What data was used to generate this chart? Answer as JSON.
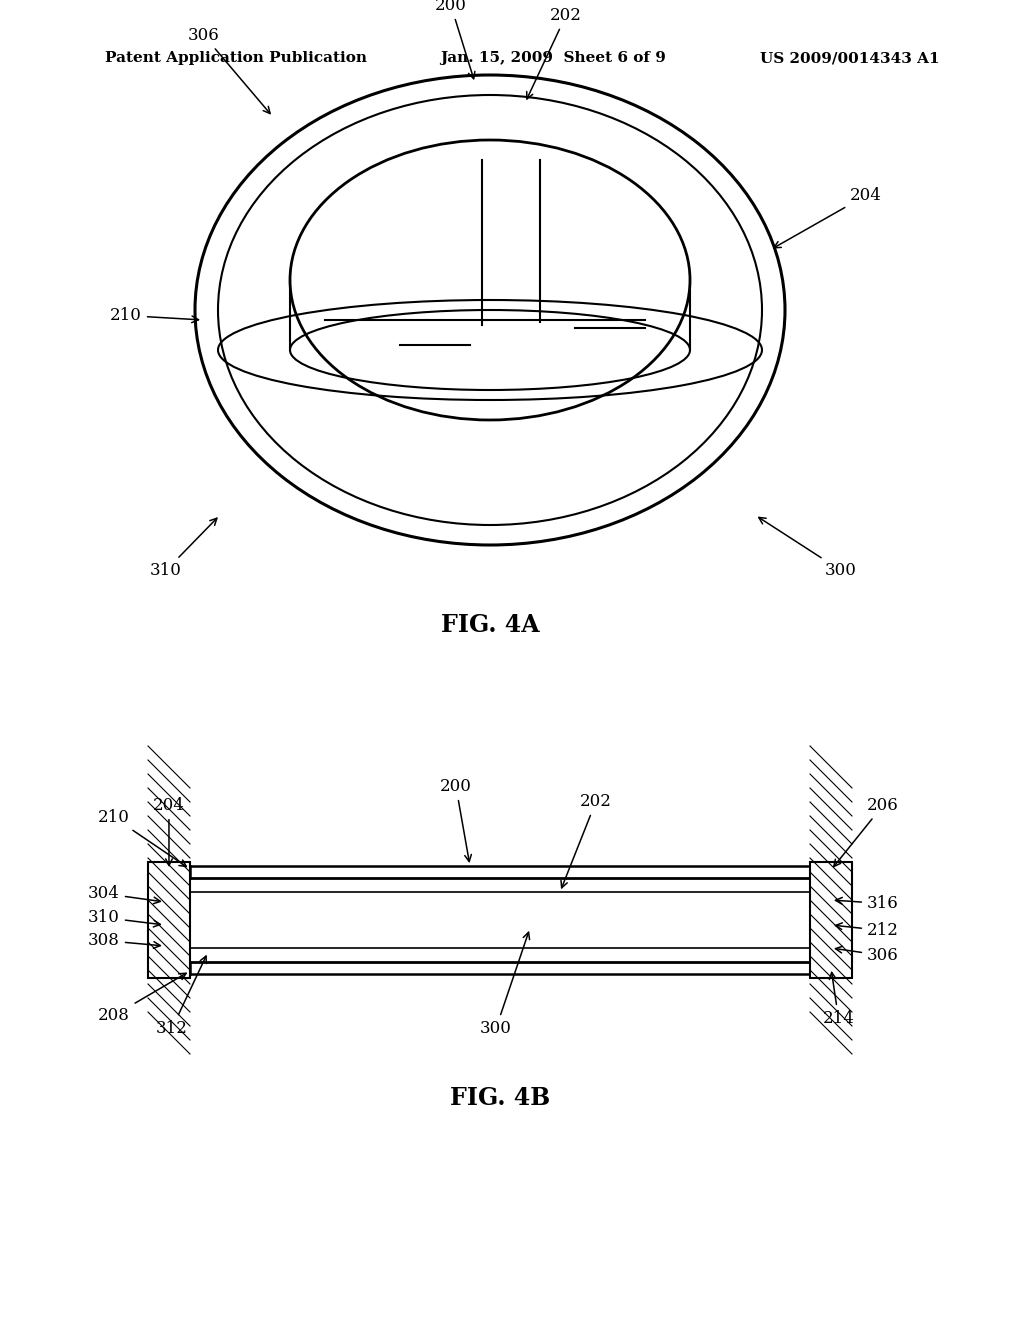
{
  "bg_color": "#ffffff",
  "header_left": "Patent Application Publication",
  "header_mid": "Jan. 15, 2009  Sheet 6 of 9",
  "header_right": "US 2009/0014343 A1",
  "fig4a_title": "FIG. 4A",
  "fig4b_title": "FIG. 4B",
  "line_color": "#000000",
  "label_fontsize": 12,
  "header_fontsize": 11,
  "title_fontsize": 17
}
